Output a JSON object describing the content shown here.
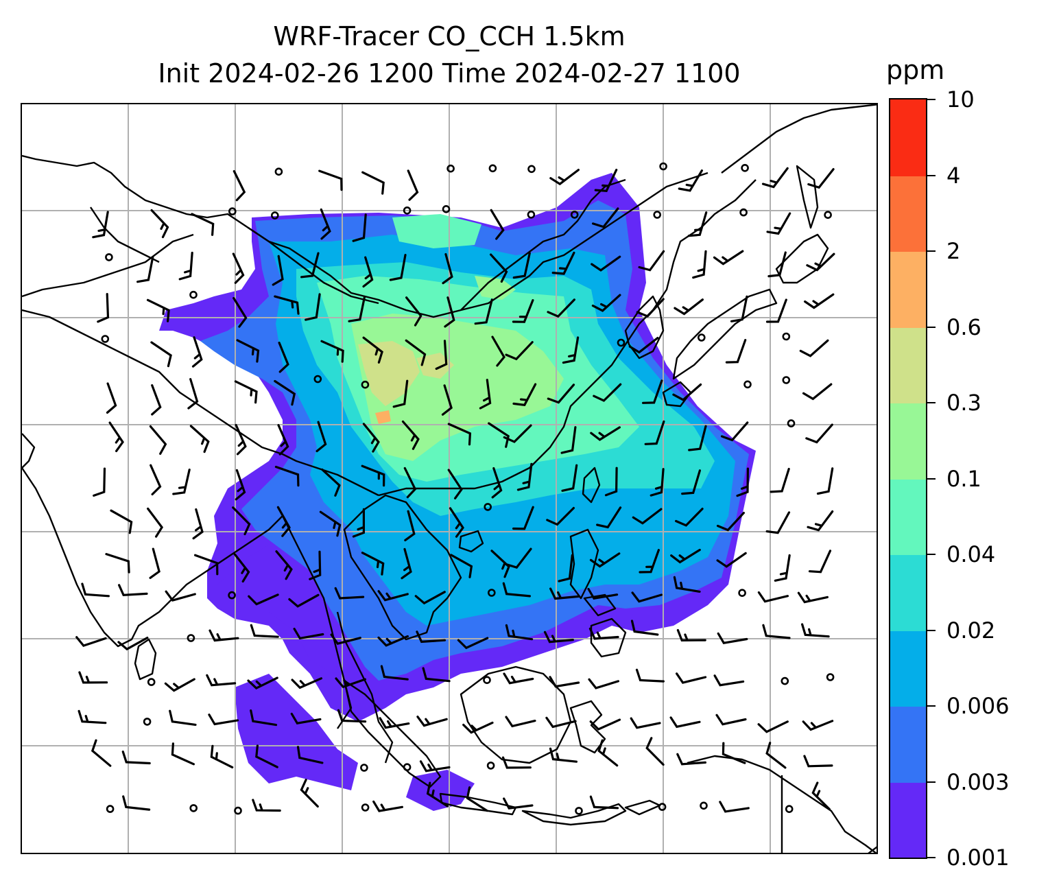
{
  "title": {
    "line1": "WRF-Tracer CO_CCH 1.5km",
    "line2": "Init 2024-02-26 1200 Time 2024-02-27 1100"
  },
  "colorbar": {
    "unit": "ppm",
    "tick_labels": [
      "10",
      "4",
      "2",
      "0.6",
      "0.3",
      "0.1",
      "0.04",
      "0.02",
      "0.006",
      "0.003",
      "0.001"
    ],
    "colors_bottom_to_top": [
      "#6429f7",
      "#3474f5",
      "#04aee9",
      "#2cdcd4",
      "#63f7bd",
      "#98f796",
      "#cfe18a",
      "#fdb063",
      "#fc7139",
      "#fa2c14"
    ]
  },
  "map": {
    "gridlines": "on",
    "coastlines": "on",
    "wind_barbs": "on",
    "ocean_color": "#ffffff",
    "coast_color": "#000000",
    "grid_color": "#b0b0b0"
  }
}
